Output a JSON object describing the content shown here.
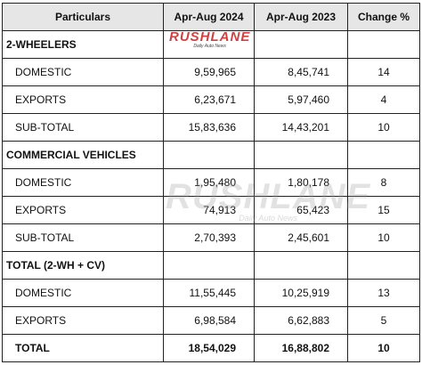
{
  "table": {
    "headers": [
      "Particulars",
      "Apr-Aug 2024",
      "Apr-Aug 2023",
      "Change %"
    ],
    "sections": [
      {
        "title": "2-WHEELERS",
        "rows": [
          {
            "label": "DOMESTIC",
            "y2024": "9,59,965",
            "y2023": "8,45,741",
            "change": "14"
          },
          {
            "label": "EXPORTS",
            "y2024": "6,23,671",
            "y2023": "5,97,460",
            "change": "4"
          },
          {
            "label": "SUB-TOTAL",
            "y2024": "15,83,636",
            "y2023": "14,43,201",
            "change": "10"
          }
        ]
      },
      {
        "title": "COMMERCIAL VEHICLES",
        "rows": [
          {
            "label": "DOMESTIC",
            "y2024": "1,95,480",
            "y2023": "1,80,178",
            "change": "8"
          },
          {
            "label": "EXPORTS",
            "y2024": "74,913",
            "y2023": "65,423",
            "change": "15"
          },
          {
            "label": "SUB-TOTAL",
            "y2024": "2,70,393",
            "y2023": "2,45,601",
            "change": "10"
          }
        ]
      },
      {
        "title": "TOTAL (2-WH + CV)",
        "rows": [
          {
            "label": "DOMESTIC",
            "y2024": "11,55,445",
            "y2023": "10,25,919",
            "change": "13"
          },
          {
            "label": "EXPORTS",
            "y2024": "6,98,584",
            "y2023": "6,62,883",
            "change": "5"
          }
        ]
      }
    ],
    "total": {
      "label": "TOTAL",
      "y2024": "18,54,029",
      "y2023": "16,88,802",
      "change": "10"
    }
  },
  "watermark": {
    "brand": "RUSHLANE",
    "tagline": "Daily Auto News"
  }
}
